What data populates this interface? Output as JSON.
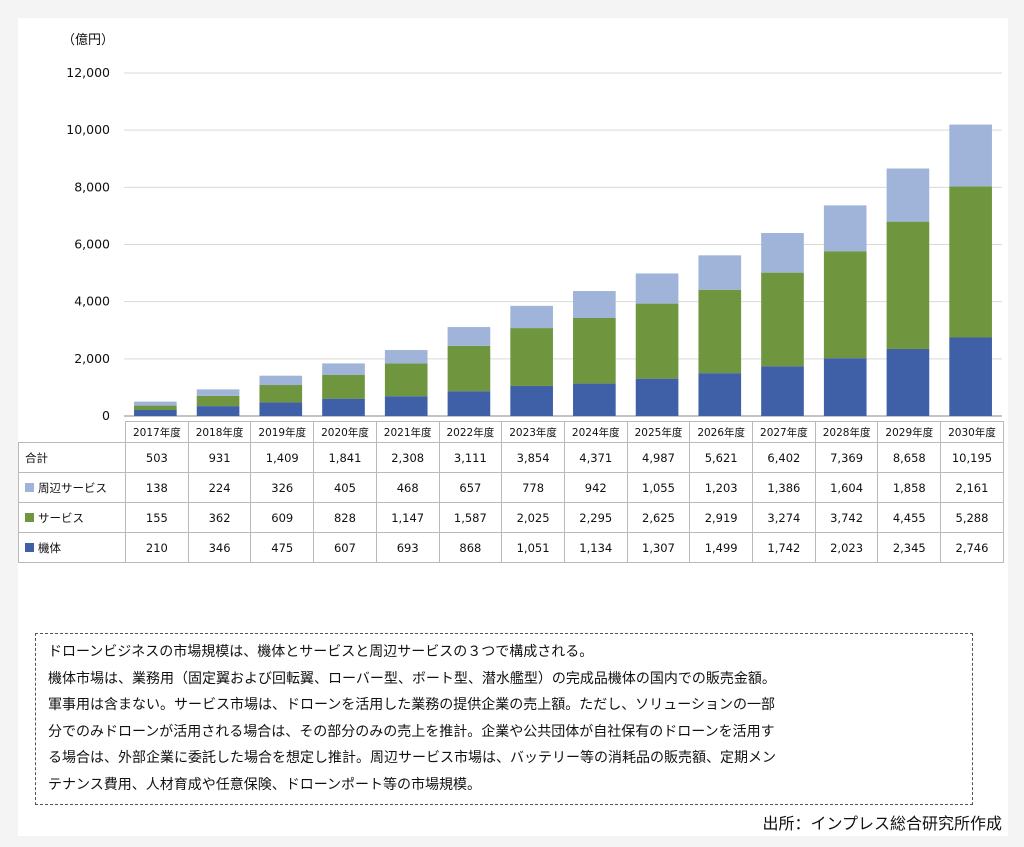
{
  "chart_data": {
    "type": "bar",
    "stacked": true,
    "ylabel": "（億円）",
    "ylim": [
      0,
      12000
    ],
    "yticks": [
      0,
      2000,
      4000,
      6000,
      8000,
      10000,
      12000
    ],
    "ytick_labels": [
      "0",
      "2,000",
      "4,000",
      "6,000",
      "8,000",
      "10,000",
      "12,000"
    ],
    "grid": true,
    "categories": [
      "2017年度",
      "2018年度",
      "2019年度",
      "2020年度",
      "2021年度",
      "2022年度",
      "2023年度",
      "2024年度",
      "2025年度",
      "2026年度",
      "2027年度",
      "2028年度",
      "2029年度",
      "2030年度"
    ],
    "series": [
      {
        "name": "機体",
        "color": "#3f5fa7",
        "values": [
          210,
          346,
          475,
          607,
          693,
          868,
          1051,
          1134,
          1307,
          1499,
          1742,
          2023,
          2345,
          2746
        ]
      },
      {
        "name": "サービス",
        "color": "#6f963f",
        "values": [
          155,
          362,
          609,
          828,
          1147,
          1587,
          2025,
          2295,
          2625,
          2919,
          3274,
          3742,
          4455,
          5288
        ]
      },
      {
        "name": "周辺サービス",
        "color": "#9fb4d8",
        "values": [
          138,
          224,
          326,
          405,
          468,
          657,
          778,
          942,
          1055,
          1203,
          1386,
          1604,
          1858,
          2161
        ]
      }
    ]
  },
  "table": {
    "rows": [
      {
        "label": "合計",
        "swatch": "",
        "cells": [
          "503",
          "931",
          "1,409",
          "1,841",
          "2,308",
          "3,111",
          "3,854",
          "4,371",
          "4,987",
          "5,621",
          "6,402",
          "7,369",
          "8,658",
          "10,195"
        ]
      },
      {
        "label": "周辺サービス",
        "swatch": "#9fb4d8",
        "cells": [
          "138",
          "224",
          "326",
          "405",
          "468",
          "657",
          "778",
          "942",
          "1,055",
          "1,203",
          "1,386",
          "1,604",
          "1,858",
          "2,161"
        ]
      },
      {
        "label": "サービス",
        "swatch": "#6f963f",
        "cells": [
          "155",
          "362",
          "609",
          "828",
          "1,147",
          "1,587",
          "2,025",
          "2,295",
          "2,625",
          "2,919",
          "3,274",
          "3,742",
          "4,455",
          "5,288"
        ]
      },
      {
        "label": "機体",
        "swatch": "#3f5fa7",
        "cells": [
          "210",
          "346",
          "475",
          "607",
          "693",
          "868",
          "1,051",
          "1,134",
          "1,307",
          "1,499",
          "1,742",
          "2,023",
          "2,345",
          "2,746"
        ]
      }
    ]
  },
  "note": {
    "lines": [
      "ドローンビジネスの市場規模は、機体とサービスと周辺サービスの３つで構成される。",
      "機体市場は、業務用（固定翼および回転翼、ローバー型、ボート型、潜水艦型）の完成品機体の国内での販売金額。",
      "軍事用は含まない。サービス市場は、ドローンを活用した業務の提供企業の売上額。ただし、ソリューションの一部",
      "分でのみドローンが活用される場合は、その部分のみの売上を推計。企業や公共団体が自社保有のドローンを活用す",
      "る場合は、外部企業に委託した場合を想定し推計。周辺サービス市場は、バッテリー等の消耗品の販売額、定期メン",
      "テナンス費用、人材育成や任意保険、ドローンポート等の市場規模。"
    ]
  },
  "source": "出所：インプレス総合研究所作成"
}
